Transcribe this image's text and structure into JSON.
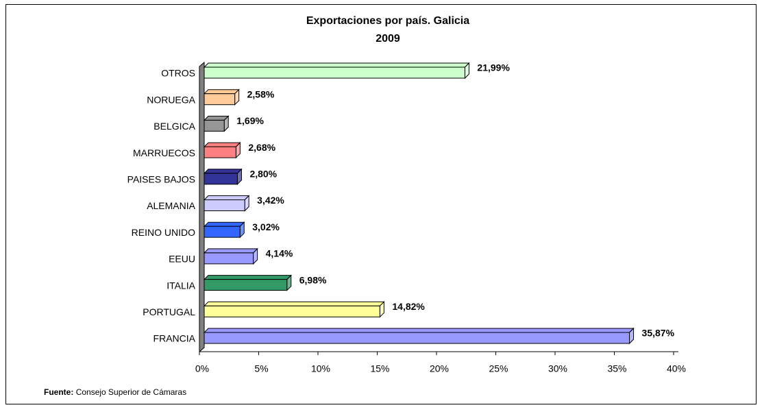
{
  "chart_data": {
    "type": "bar3d",
    "orientation": "horizontal",
    "title": "Exportaciones por país. Galicia",
    "subtitle": "2009",
    "categories": [
      "OTROS",
      "NORUEGA",
      "BELGICA",
      "MARRUECOS",
      "PAISES BAJOS",
      "ALEMANIA",
      "REINO UNIDO",
      "EEUU",
      "ITALIA",
      "PORTUGAL",
      "FRANCIA"
    ],
    "values": [
      21.99,
      2.58,
      1.69,
      2.68,
      2.8,
      3.42,
      3.02,
      4.14,
      6.98,
      14.82,
      35.87
    ],
    "value_labels": [
      "21,99%",
      "2,58%",
      "1,69%",
      "2,68%",
      "2,80%",
      "3,42%",
      "3,02%",
      "4,14%",
      "6,98%",
      "14,82%",
      "35,87%"
    ],
    "colors": [
      "#ccffcc",
      "#ffcc99",
      "#969696",
      "#ff8080",
      "#333399",
      "#ccccff",
      "#3366ff",
      "#9999ff",
      "#339966",
      "#ffff99",
      "#9999ff"
    ],
    "xlim": [
      0,
      40
    ],
    "xticks": [
      {
        "value": 0,
        "label": "0%"
      },
      {
        "value": 5,
        "label": "5%"
      },
      {
        "value": 10,
        "label": "10%"
      },
      {
        "value": 15,
        "label": "15%"
      },
      {
        "value": 20,
        "label": "20%"
      },
      {
        "value": 25,
        "label": "25%"
      },
      {
        "value": 30,
        "label": "30%"
      },
      {
        "value": 35,
        "label": "35%"
      },
      {
        "value": 40,
        "label": "40%"
      }
    ],
    "source_label": "Fuente:",
    "source": "Consejo Superior de Cámaras"
  }
}
